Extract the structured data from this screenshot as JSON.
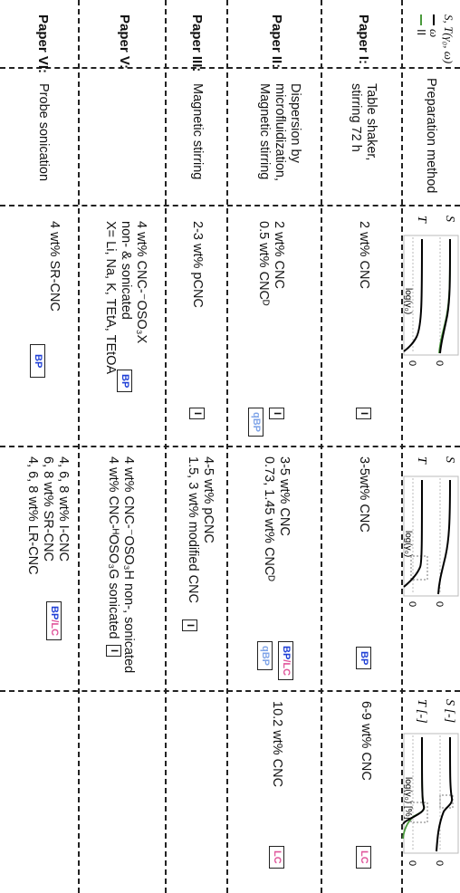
{
  "corner": {
    "line1": "S, T(γ₀, ω)",
    "line2": "ω",
    "legend_bold": "I",
    "legend_green": "I",
    "legend_two": "II"
  },
  "header": {
    "method_label": "Preparation method"
  },
  "plots": {
    "p1": {
      "s_label": "S",
      "t_label": "T",
      "axis_label": "log(γ₀)",
      "zero": "0"
    },
    "p2": {
      "s_label": "S",
      "t_label": "T",
      "axis_label": "log(γ₀)",
      "zero": "0"
    },
    "p3": {
      "s_label": "S [-]",
      "t_label": "T [-]",
      "axis_label": "log(γ₀) [%]",
      "zero": "0"
    }
  },
  "rows": [
    {
      "paper": "Paper I:",
      "method": [
        "Table shaker,",
        "stirring 72 h"
      ],
      "c1": [
        "2 wt% CNC"
      ],
      "c1_badge": "I",
      "c2": [
        "3-5wt% CNC"
      ],
      "c2_badge": "BP",
      "c3": [
        "6-9 wt% CNC"
      ],
      "c3_badge": "LC"
    },
    {
      "paper": "Paper II:",
      "method": [
        "Dispersion by",
        "microfluidization,",
        "Magnetic stirring"
      ],
      "c1": [
        "2 wt% CNC",
        "0.5 wt% CNCᴰ"
      ],
      "c1_badge": "I",
      "c1_badge2": "qBP",
      "c2": [
        "3-5 wt% CNC",
        "0.73, 1.45 wt% CNCᴰ"
      ],
      "c2_badge_a": "BP",
      "c2_badge_b": "LC",
      "c2_badge2": "qBP",
      "c3": [
        "10.2 wt% CNC"
      ],
      "c3_badge": "LC"
    },
    {
      "paper": "Paper III:",
      "method": [
        "Magnetic stirring"
      ],
      "c1": [
        "2-3 wt% pCNC"
      ],
      "c1_badge": "I",
      "c2": [
        "4-5 wt% pCNC",
        "1.5, 3 wt% modified CNC"
      ],
      "c2_badge": "I"
    },
    {
      "paper": "Paper V:",
      "method": [],
      "c1": [
        "4 wt% CNC-⁻OSO₃X",
        "non- & sonicated",
        "X= Li, Na, K, TEtA, TEtOA"
      ],
      "c1_badge": "BP",
      "c2": [
        "4 wt% CNC-⁻OSO₃H non-, sonicated",
        "4 wt% CNC-ᴴOSO₃G sonicated"
      ],
      "c2_badge": "I"
    },
    {
      "paper": "Paper VI:",
      "method": [
        "Probe sonication"
      ],
      "c1": [
        "4 wt% SR-CNC"
      ],
      "c1_badge": "BP",
      "c2": [
        "4, 6, 8 wt% I-CNC",
        "6, 8 wt% SR-CNC",
        "4, 6, 8 wt% LR-CNC"
      ],
      "c2_badge_a": "BP",
      "c2_badge_b": "LC"
    }
  ],
  "colors": {
    "blue": "#1f3fd6",
    "light_blue": "#7fa4e8",
    "pink": "#e0559b",
    "green": "#4a9a3c",
    "curve": "#000000"
  }
}
